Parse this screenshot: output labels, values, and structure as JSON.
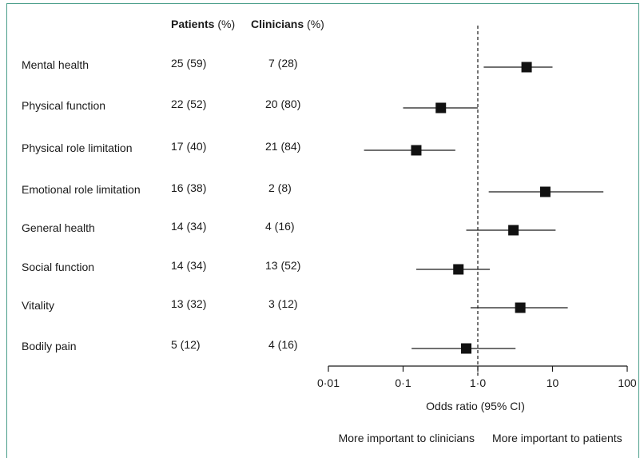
{
  "headers": {
    "patients_bold": "Patients",
    "patients_unit": " (%)",
    "clinicians_bold": "Clinicians",
    "clinicians_unit": " (%)"
  },
  "chart_data": {
    "type": "forest",
    "x_scale": "log",
    "xlim": [
      0.01,
      100
    ],
    "xlabel": "Odds ratio (95% CI)",
    "x_ticks": [
      {
        "value": 0.01,
        "label": "0·01"
      },
      {
        "value": 0.1,
        "label": "0·1"
      },
      {
        "value": 1,
        "label": "1·0"
      },
      {
        "value": 10,
        "label": "10"
      },
      {
        "value": 100,
        "label": "100"
      }
    ],
    "reference_line": 1.0,
    "left_annotation": "More important to clinicians",
    "right_annotation": "More important to patients",
    "rows": [
      {
        "label": "Mental health",
        "patients": "25 (59)",
        "clinicians": "7 (28)",
        "or": 4.5,
        "lo": 1.2,
        "hi": 10
      },
      {
        "label": "Physical function",
        "patients": "22 (52)",
        "clinicians": "20 (80)",
        "or": 0.32,
        "lo": 0.1,
        "hi": 1.0
      },
      {
        "label": "Physical role limitation",
        "patients": "17 (40)",
        "clinicians": "21 (84)",
        "or": 0.15,
        "lo": 0.03,
        "hi": 0.5
      },
      {
        "label": "Emotional role limitation",
        "patients": "16 (38)",
        "clinicians": "2 (8)",
        "or": 8.0,
        "lo": 1.4,
        "hi": 48
      },
      {
        "label": "General health",
        "patients": "14 (34)",
        "clinicians": "4  (16)",
        "or": 3.0,
        "lo": 0.7,
        "hi": 11
      },
      {
        "label": "Social function",
        "patients": "14 (34)",
        "clinicians": "13 (52)",
        "or": 0.55,
        "lo": 0.15,
        "hi": 1.45
      },
      {
        "label": "Vitality",
        "patients": "13 (32)",
        "clinicians": "3 (12)",
        "or": 3.7,
        "lo": 0.8,
        "hi": 16
      },
      {
        "label": "Bodily pain",
        "patients": "5  (12)",
        "clinicians": "4 (16)",
        "or": 0.7,
        "lo": 0.13,
        "hi": 3.2
      }
    ]
  }
}
